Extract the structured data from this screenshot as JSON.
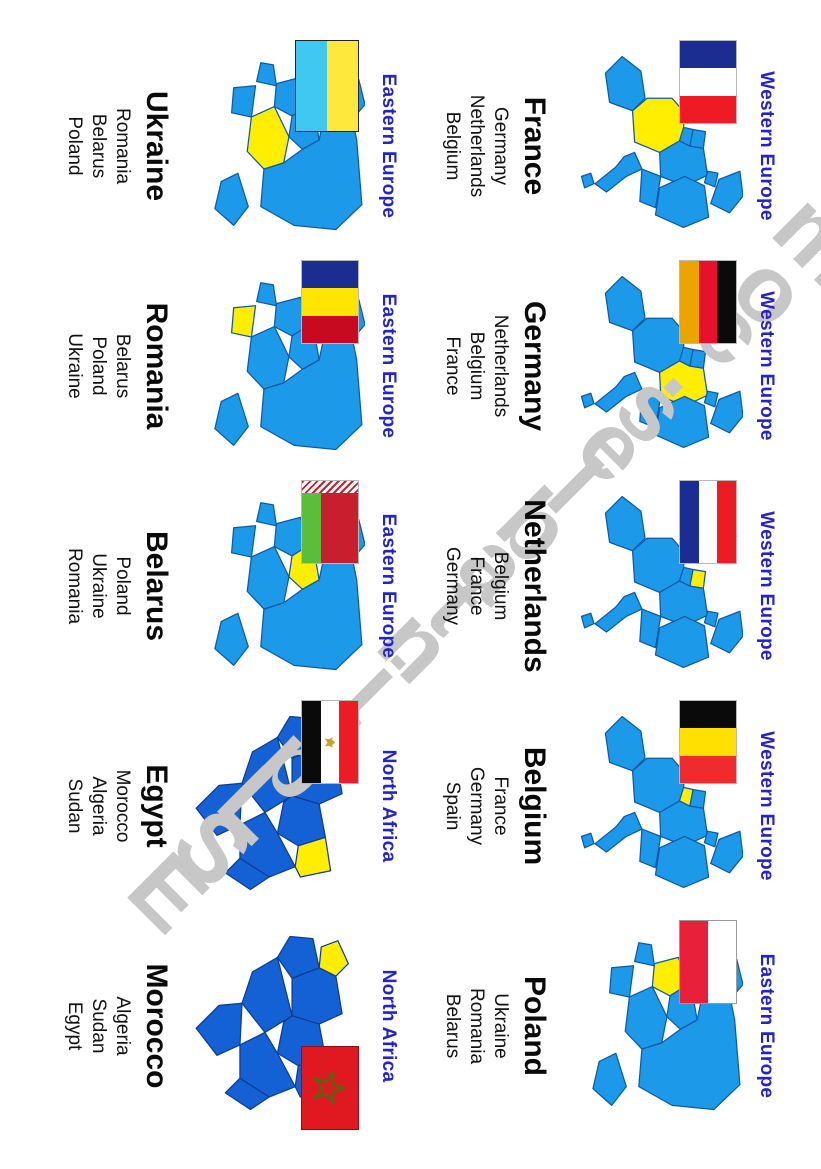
{
  "watermark": {
    "text": "ESLprintables.com",
    "color": "#c7c7c7"
  },
  "colors": {
    "region_title": "#2323cc",
    "country_text": "#0a0a0a",
    "highlight": "#ffee00",
    "europe_map_fill": "#1c9ae9",
    "europe_map_stroke": "#0c5aa6",
    "africa_map_fill": "#1461d6",
    "africa_map_stroke": "#0a3d91"
  },
  "cards": [
    {
      "region": "Western Europe",
      "country": "France",
      "neighbors": [
        "Germany",
        "Netherlands",
        "Belgium"
      ],
      "map": "western-europe",
      "highlight": "france",
      "flag": {
        "name": "flag-of-france",
        "type": "vstripes",
        "colors": [
          "#1b2d91",
          "#ffffff",
          "#ed1c24"
        ]
      }
    },
    {
      "region": "Western Europe",
      "country": "Germany",
      "neighbors": [
        "Netherlands",
        "Belgium",
        "France"
      ],
      "map": "western-europe",
      "highlight": "germany",
      "flag": {
        "name": "flag-of-germany",
        "type": "hstripes",
        "colors": [
          "#0a0a0a",
          "#e8112d",
          "#eca400"
        ]
      }
    },
    {
      "region": "Western Europe",
      "country": "Netherlands",
      "neighbors": [
        "Belgium",
        "France",
        "Germany"
      ],
      "map": "western-europe",
      "highlight": "netherlands",
      "flag": {
        "name": "flag-of-netherlands",
        "type": "hstripes",
        "colors": [
          "#ed1c24",
          "#ffffff",
          "#1b2d91"
        ]
      }
    },
    {
      "region": "Western Europe",
      "country": "Belgium",
      "neighbors": [
        "France",
        "Germany",
        "Spain"
      ],
      "map": "western-europe",
      "highlight": "belgium",
      "flag": {
        "name": "flag-of-belgium",
        "type": "vstripes",
        "colors": [
          "#0a0a0a",
          "#ffe000",
          "#ef2b2d"
        ]
      }
    },
    {
      "region": "Eastern Europe",
      "country": "Poland",
      "neighbors": [
        "Ukraine",
        "Romania",
        "Belarus"
      ],
      "map": "eastern-europe",
      "highlight": "poland",
      "flag": {
        "name": "flag-of-poland",
        "type": "hstripes",
        "colors": [
          "#ffffff",
          "#e8203a"
        ],
        "border": "#9a9a9a"
      }
    },
    {
      "region": "Eastern Europe",
      "country": "Ukraine",
      "neighbors": [
        "Romania",
        "Belarus",
        "Poland"
      ],
      "map": "eastern-europe",
      "highlight": "ukraine",
      "flag": {
        "name": "flag-of-ukraine",
        "type": "hstripes",
        "colors": [
          "#ffe83c",
          "#40c8f0"
        ],
        "size": [
          92,
          64
        ],
        "border": "#222222"
      }
    },
    {
      "region": "Eastern Europe",
      "country": "Romania",
      "neighbors": [
        "Belarus",
        "Poland",
        "Ukraine"
      ],
      "map": "eastern-europe",
      "highlight": "romania",
      "flag": {
        "name": "flag-of-romania",
        "type": "vstripes",
        "colors": [
          "#1b2d91",
          "#ffe500",
          "#c80a21"
        ]
      }
    },
    {
      "region": "Eastern Europe",
      "country": "Belarus",
      "neighbors": [
        "Poland",
        "Ukraine",
        "Romania"
      ],
      "map": "eastern-europe",
      "highlight": "belarus",
      "flag": {
        "name": "flag-of-belarus",
        "type": "belarus",
        "colors": [
          "#c81e2e",
          "#5abe3c",
          "#ffffff"
        ]
      }
    },
    {
      "region": "North Africa",
      "country": "Egypt",
      "neighbors": [
        "Morocco",
        "Algeria",
        "Sudan"
      ],
      "map": "north-africa",
      "highlight": "egypt",
      "flag": {
        "name": "flag-of-egypt",
        "type": "hstripes",
        "colors": [
          "#ed1c24",
          "#ffffff",
          "#0a0a0a"
        ],
        "emblem": "eagle",
        "emblem_color": "#c9a227"
      }
    },
    {
      "region": "North Africa",
      "country": "Morocco",
      "neighbors": [
        "Algeria",
        "Sudan",
        "Egypt"
      ],
      "map": "north-africa",
      "highlight": "morocco",
      "flag": {
        "name": "flag-of-morocco",
        "type": "solid",
        "colors": [
          "#e01820"
        ],
        "emblem": "star",
        "emblem_color": "#4c6b11",
        "pos": "right",
        "border": "#8a1016"
      }
    }
  ]
}
